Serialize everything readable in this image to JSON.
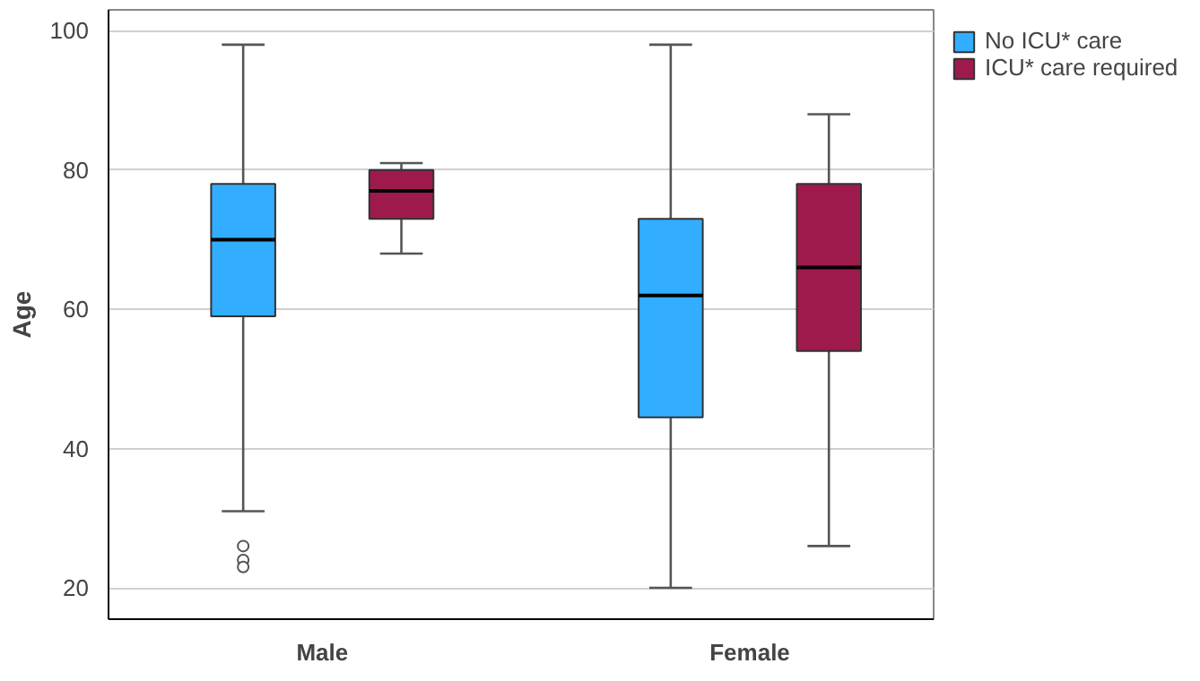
{
  "chart_data": {
    "type": "box",
    "ylabel": "Age",
    "categories": [
      "Male",
      "Female"
    ],
    "ylim": [
      15.5,
      103
    ],
    "yticks": [
      20,
      40,
      60,
      80,
      100
    ],
    "grid": "y",
    "legend": "right",
    "series": [
      {
        "name": "No ICU* care",
        "color": "#33adff",
        "boxes": [
          {
            "low": 31,
            "q1": 59,
            "median": 70,
            "q3": 78,
            "high": 98,
            "outliers": [
              26,
              24,
              23
            ]
          },
          {
            "low": 20,
            "q1": 44.5,
            "median": 62,
            "q3": 73,
            "high": 98
          }
        ]
      },
      {
        "name": "ICU* care required",
        "color": "#9e1a4c",
        "boxes": [
          {
            "low": 68,
            "q1": 73,
            "median": 77,
            "q3": 80,
            "high": 81
          },
          {
            "low": 26,
            "q1": 54,
            "median": 66,
            "q3": 78,
            "high": 88
          }
        ]
      }
    ]
  }
}
